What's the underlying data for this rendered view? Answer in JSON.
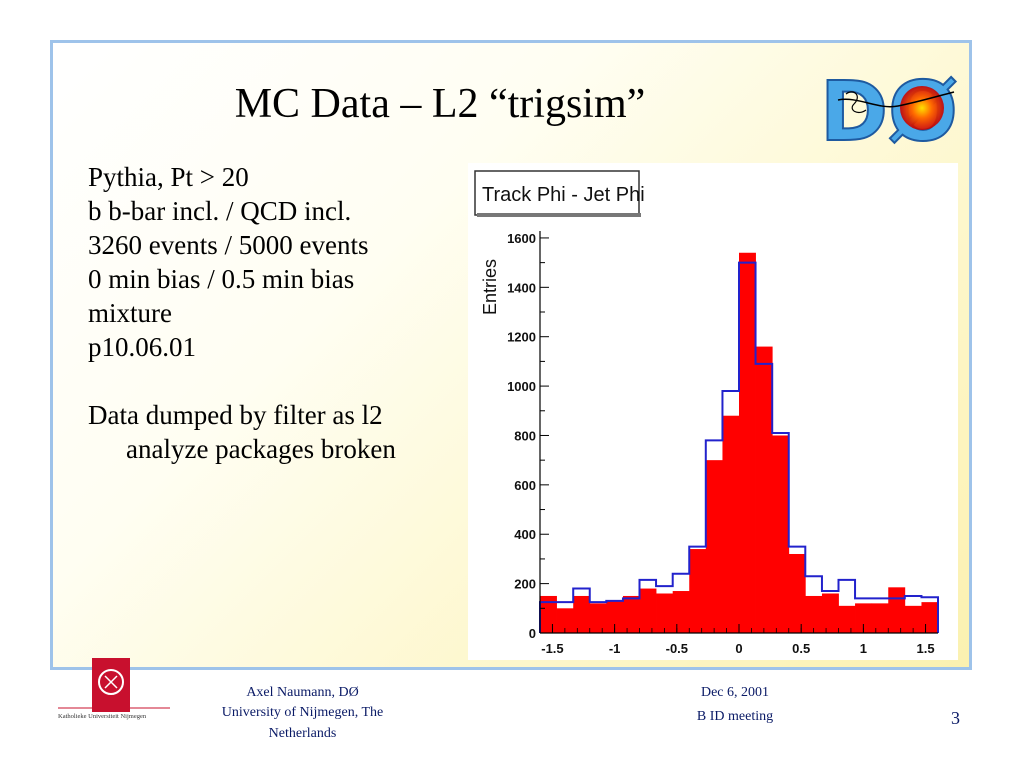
{
  "slide": {
    "title": "MC Data – L2 “trigsim”",
    "bullets": [
      "Pythia, Pt > 20",
      "b b-bar incl. / QCD incl.",
      "3260 events / 5000 events",
      "0 min bias / 0.5 min bias",
      "mixture",
      "p10.06.01"
    ],
    "note_line1": "Data dumped by filter as l2",
    "note_line2": "analyze packages broken",
    "logo_text": "DØ"
  },
  "footer": {
    "author_line1": "Axel Naumann, DØ",
    "author_line2": "University of Nijmegen, The",
    "author_line3": "Netherlands",
    "date": "Dec 6, 2001",
    "meeting": "B ID meeting",
    "page": "3",
    "uni_logo_text": "Katholieke Universiteit Nijmegen"
  },
  "chart_data": {
    "type": "bar",
    "title": "Track Phi - Jet Phi",
    "ylabel": "Entries",
    "xlabel": "",
    "xlim": [
      -1.6,
      1.6
    ],
    "ylim": [
      0,
      1620
    ],
    "xticks": [
      -1.5,
      -1,
      -0.5,
      0,
      0.5,
      1,
      1.5
    ],
    "xtick_labels": [
      "-1.5",
      "-1",
      "-0.5",
      "0",
      "0.5",
      "1",
      "1.5"
    ],
    "yticks": [
      0,
      200,
      400,
      600,
      800,
      1000,
      1200,
      1400,
      1600
    ],
    "ytick_labels": [
      "0",
      "200",
      "400",
      "600",
      "800",
      "1000",
      "1200",
      "1400",
      "1600"
    ],
    "bin_edges": [
      -1.6,
      -1.467,
      -1.333,
      -1.2,
      -1.067,
      -0.933,
      -0.8,
      -0.667,
      -0.533,
      -0.4,
      -0.267,
      -0.133,
      0.0,
      0.133,
      0.267,
      0.4,
      0.533,
      0.667,
      0.8,
      0.933,
      1.067,
      1.2,
      1.333,
      1.467,
      1.6
    ],
    "series": [
      {
        "fill": "#ff0000",
        "values": [
          150,
          100,
          150,
          120,
          130,
          150,
          180,
          160,
          170,
          340,
          700,
          880,
          1540,
          1160,
          800,
          320,
          150,
          160,
          110,
          120,
          120,
          185,
          110,
          125
        ]
      },
      {
        "fill": "none",
        "stroke": "#2222cc",
        "values": [
          125,
          125,
          180,
          125,
          130,
          140,
          215,
          190,
          240,
          350,
          780,
          980,
          1500,
          1090,
          810,
          350,
          230,
          170,
          215,
          140,
          140,
          140,
          150,
          145
        ]
      }
    ]
  }
}
